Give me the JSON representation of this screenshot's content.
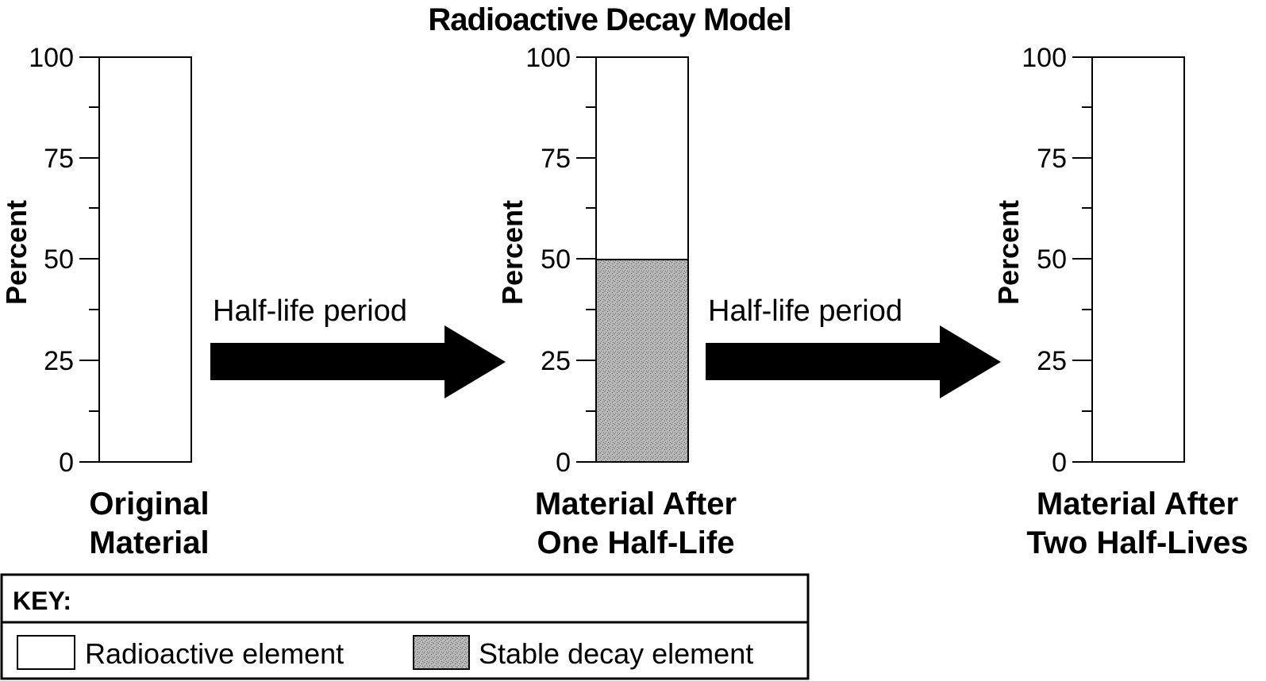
{
  "title": "Radioactive Decay Model",
  "y_axis_label": "Percent",
  "y_ticks": [
    "0",
    "25",
    "50",
    "75",
    "100"
  ],
  "arrow_label": "Half-life period",
  "panels": [
    {
      "caption_line1": "Original",
      "caption_line2": "Material",
      "stable_decay_percent": 0
    },
    {
      "caption_line1": "Material After",
      "caption_line2": "One Half-Life",
      "stable_decay_percent": 50
    },
    {
      "caption_line1": "Material After",
      "caption_line2": "Two Half-Lives",
      "stable_decay_percent": 0
    }
  ],
  "key": {
    "heading": "KEY:",
    "radioactive_label": "Radioactive element",
    "stable_label": "Stable decay element"
  },
  "colors": {
    "stable_fill": "#b3b3b3",
    "ink": "#000000"
  }
}
